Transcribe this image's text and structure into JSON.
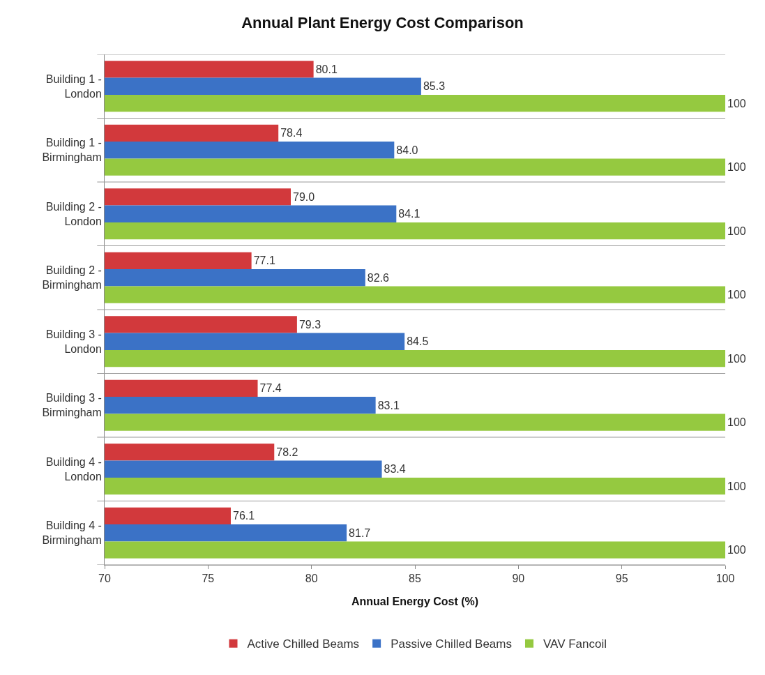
{
  "chart_data": {
    "type": "bar",
    "orientation": "horizontal",
    "title": "Annual Plant Energy Cost Comparison",
    "xlabel": "Annual Energy Cost (%)",
    "categories": [
      "Building 1 - London",
      "Building 1 - Birmingham",
      "Building 2 - London",
      "Building 2 - Birmingham",
      "Building 3 - London",
      "Building 3 - Birmingham",
      "Building 4 - London",
      "Building 4 - Birmingham"
    ],
    "series": [
      {
        "name": "Active Chilled Beams",
        "color": "#d2393c",
        "values": [
          80.1,
          78.4,
          79.0,
          77.1,
          79.3,
          77.4,
          78.2,
          76.1
        ],
        "value_labels": [
          "80.1",
          "78.4",
          "79.0",
          "77.1",
          "79.3",
          "77.4",
          "78.2",
          "76.1"
        ]
      },
      {
        "name": "Passive Chilled Beams",
        "color": "#3b72c6",
        "values": [
          85.3,
          84.0,
          84.1,
          82.6,
          84.5,
          83.1,
          83.4,
          81.7
        ],
        "value_labels": [
          "85.3",
          "84.0",
          "84.1",
          "82.6",
          "84.5",
          "83.1",
          "83.4",
          "81.7"
        ]
      },
      {
        "name": "VAV Fancoil",
        "color": "#95c940",
        "values": [
          100,
          100,
          100,
          100,
          100,
          100,
          100,
          100
        ],
        "value_labels": [
          "100",
          "100",
          "100",
          "100",
          "100",
          "100",
          "100",
          "100"
        ]
      }
    ],
    "xlim": [
      70,
      100
    ],
    "xticks": [
      70,
      75,
      80,
      85,
      90,
      95,
      100
    ],
    "grid": "y",
    "legend": "bottom"
  }
}
